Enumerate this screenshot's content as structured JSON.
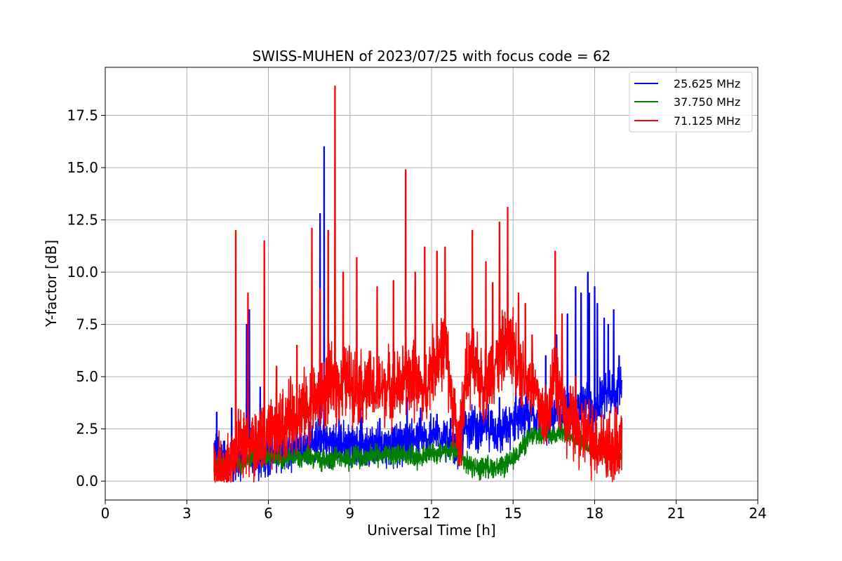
{
  "chart_data": {
    "type": "line",
    "title": "SWISS-MUHEN of 2023/07/25 with focus code = 62",
    "xlabel": "Universal Time [h]",
    "ylabel": "Y-factor [dB]",
    "xlim": [
      0,
      24
    ],
    "ylim": [
      -0.9,
      19.8
    ],
    "xticks": [
      0,
      3,
      6,
      9,
      12,
      15,
      18,
      21,
      24
    ],
    "xtick_labels": [
      "0",
      "3",
      "6",
      "9",
      "12",
      "15",
      "18",
      "21",
      "24"
    ],
    "yticks": [
      0.0,
      2.5,
      5.0,
      7.5,
      10.0,
      12.5,
      15.0,
      17.5
    ],
    "ytick_labels": [
      "0.0",
      "2.5",
      "5.0",
      "7.5",
      "10.0",
      "12.5",
      "15.0",
      "17.5"
    ],
    "grid": true,
    "legend_position": "top-right",
    "series": [
      {
        "name": "25.625 MHz",
        "color": "#0000ff",
        "x": [
          4.0,
          4.25,
          4.5,
          4.75,
          5.0,
          5.25,
          5.5,
          5.75,
          6.0,
          6.25,
          6.5,
          6.75,
          7.0,
          7.25,
          7.5,
          7.75,
          8.0,
          8.25,
          8.5,
          8.75,
          9.0,
          9.25,
          9.5,
          9.75,
          10.0,
          10.25,
          10.5,
          10.75,
          11.0,
          11.25,
          11.5,
          11.75,
          12.0,
          12.25,
          12.5,
          12.75,
          13.0,
          13.25,
          13.5,
          13.75,
          14.0,
          14.25,
          14.5,
          14.75,
          15.0,
          15.25,
          15.5,
          15.75,
          16.0,
          16.25,
          16.5,
          16.75,
          17.0,
          17.25,
          17.5,
          17.75,
          18.0,
          18.25,
          18.5,
          18.75,
          19.0
        ],
        "y": [
          1.5,
          1.3,
          1.0,
          0.8,
          1.0,
          2.0,
          1.2,
          1.0,
          1.4,
          1.5,
          1.6,
          1.5,
          1.7,
          1.6,
          1.8,
          2.0,
          1.9,
          1.8,
          1.7,
          1.8,
          1.8,
          1.9,
          1.8,
          1.7,
          1.8,
          1.9,
          1.6,
          1.8,
          1.9,
          2.0,
          2.0,
          1.9,
          2.1,
          2.3,
          2.2,
          1.3,
          1.5,
          2.6,
          2.8,
          2.4,
          2.6,
          2.5,
          2.2,
          2.5,
          2.8,
          3.0,
          2.9,
          3.2,
          3.0,
          2.8,
          3.1,
          3.3,
          3.4,
          3.0,
          3.5,
          3.8,
          3.2,
          4.0,
          4.2,
          4.0,
          4.8
        ],
        "spike_x": [
          4.1,
          4.65,
          5.2,
          5.3,
          5.7,
          6.4,
          7.9,
          8.05,
          8.6,
          9.4,
          10.1,
          11.1,
          11.6,
          12.2,
          12.7,
          13.9,
          14.5,
          15.1,
          15.5,
          16.2,
          16.6,
          17.0,
          17.3,
          17.5,
          17.75,
          17.8,
          18.0,
          18.1,
          18.35,
          18.5,
          18.7,
          18.9
        ],
        "spike_y": [
          3.3,
          3.5,
          7.5,
          8.2,
          4.5,
          3.2,
          12.8,
          16.0,
          3.0,
          3.5,
          3.0,
          4.0,
          3.5,
          3.2,
          3.0,
          4.5,
          4.0,
          4.5,
          5.0,
          6.0,
          7.0,
          8.0,
          9.3,
          9.0,
          10.0,
          9.0,
          9.3,
          8.5,
          7.8,
          7.5,
          8.2,
          6.0
        ]
      },
      {
        "name": "37.750 MHz",
        "color": "#008000",
        "x": [
          4.0,
          4.25,
          4.5,
          4.75,
          5.0,
          5.25,
          5.5,
          5.75,
          6.0,
          6.25,
          6.5,
          6.75,
          7.0,
          7.25,
          7.5,
          7.75,
          8.0,
          8.25,
          8.5,
          8.75,
          9.0,
          9.25,
          9.5,
          9.75,
          10.0,
          10.25,
          10.5,
          10.75,
          11.0,
          11.25,
          11.5,
          11.75,
          12.0,
          12.25,
          12.5,
          12.75,
          13.0,
          13.25,
          13.5,
          13.75,
          14.0,
          14.25,
          14.5,
          14.75,
          15.0,
          15.25,
          15.5,
          15.75,
          16.0,
          16.25,
          16.5,
          16.75,
          17.0,
          17.25,
          17.5,
          17.75,
          18.0,
          18.25,
          18.5,
          18.75,
          19.0
        ],
        "y": [
          0.8,
          0.9,
          1.0,
          1.0,
          0.8,
          1.1,
          1.2,
          1.1,
          1.3,
          1.2,
          1.1,
          1.2,
          1.2,
          1.1,
          1.2,
          1.1,
          1.0,
          1.1,
          1.2,
          1.0,
          1.1,
          1.2,
          1.1,
          1.3,
          1.2,
          1.3,
          1.2,
          1.3,
          1.2,
          1.3,
          1.1,
          1.2,
          1.4,
          1.3,
          1.5,
          1.4,
          1.2,
          0.9,
          0.7,
          0.6,
          0.7,
          0.7,
          0.6,
          0.8,
          1.0,
          1.5,
          1.9,
          2.2,
          2.2,
          2.3,
          2.2,
          2.4,
          2.3,
          2.1,
          1.9,
          1.7,
          1.6,
          1.5,
          1.4,
          1.4,
          1.3
        ]
      },
      {
        "name": "71.125 MHz",
        "color": "#ff0000",
        "x": [
          4.0,
          4.25,
          4.5,
          4.75,
          5.0,
          5.25,
          5.5,
          5.75,
          6.0,
          6.25,
          6.5,
          6.75,
          7.0,
          7.25,
          7.5,
          7.75,
          8.0,
          8.25,
          8.5,
          8.75,
          9.0,
          9.25,
          9.5,
          9.75,
          10.0,
          10.25,
          10.5,
          10.75,
          11.0,
          11.25,
          11.5,
          11.75,
          12.0,
          12.25,
          12.5,
          12.75,
          13.0,
          13.25,
          13.5,
          13.75,
          14.0,
          14.25,
          14.5,
          14.75,
          15.0,
          15.25,
          15.5,
          15.75,
          16.0,
          16.25,
          16.5,
          16.75,
          17.0,
          17.25,
          17.5,
          17.75,
          18.0,
          18.25,
          18.5,
          18.75,
          19.0
        ],
        "y": [
          0.2,
          0.4,
          0.6,
          1.2,
          1.5,
          1.6,
          1.7,
          1.8,
          2.0,
          2.2,
          2.6,
          3.0,
          3.2,
          3.4,
          3.6,
          3.9,
          4.2,
          4.5,
          4.6,
          4.7,
          4.8,
          4.6,
          4.5,
          4.4,
          4.3,
          4.5,
          4.6,
          4.4,
          4.8,
          5.0,
          4.5,
          4.2,
          5.5,
          6.0,
          6.5,
          4.0,
          1.5,
          5.0,
          5.5,
          5.0,
          4.5,
          5.5,
          6.0,
          6.5,
          6.5,
          5.5,
          5.0,
          4.5,
          3.5,
          3.0,
          5.5,
          4.0,
          3.0,
          2.5,
          2.3,
          2.2,
          2.0,
          1.9,
          1.7,
          1.6,
          1.7
        ],
        "spike_x": [
          4.8,
          5.25,
          5.85,
          6.3,
          7.05,
          7.6,
          7.9,
          8.2,
          8.45,
          8.75,
          9.25,
          10.0,
          10.6,
          11.05,
          11.4,
          11.75,
          12.2,
          12.5,
          13.5,
          14.0,
          14.25,
          14.5,
          14.8,
          15.2,
          15.45,
          15.7,
          16.55,
          16.8,
          17.3
        ],
        "spike_y": [
          12.0,
          9.0,
          11.5,
          5.5,
          6.5,
          12.1,
          9.2,
          12.0,
          18.9,
          10.0,
          10.7,
          9.3,
          9.6,
          14.9,
          10.0,
          11.2,
          11.0,
          11.2,
          12.0,
          10.5,
          9.5,
          12.4,
          13.1,
          9.0,
          8.5,
          7.0,
          11.0,
          8.0,
          5.0
        ]
      }
    ]
  }
}
